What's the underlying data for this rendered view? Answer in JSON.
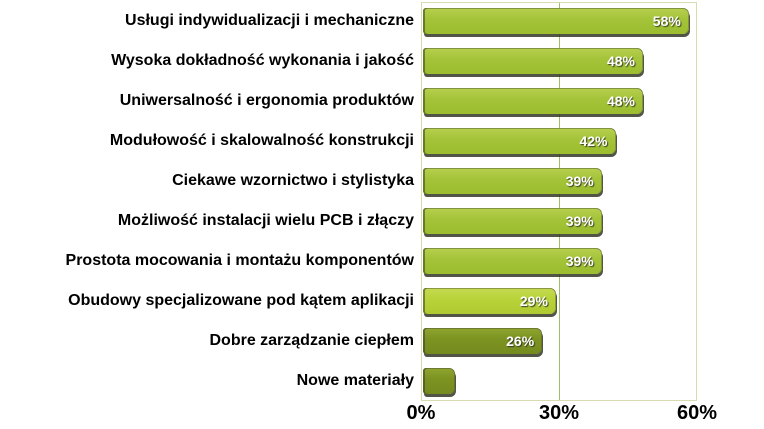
{
  "chart_data": {
    "type": "bar",
    "orientation": "horizontal",
    "title": "",
    "xlabel": "",
    "ylabel": "",
    "categories": [
      "Usługi indywidualizacji i mechaniczne",
      "Wysoka dokładność wykonania i jakość",
      "Uniwersalność i ergonomia produktów",
      "Modułowość i skalowalność konstrukcji",
      "Ciekawe wzornictwo i stylistyka",
      "Możliwość instalacji wielu PCB i złączy",
      "Prostota mocowania i montażu komponentów",
      "Obudowy specjalizowane pod kątem aplikacji",
      "Dobre zarządzanie ciepłem",
      "Nowe materiały"
    ],
    "values": [
      58,
      48,
      48,
      42,
      39,
      39,
      39,
      29,
      26,
      7
    ],
    "data_labels": [
      "58%",
      "48%",
      "48%",
      "42%",
      "39%",
      "39%",
      "39%",
      "29%",
      "26%",
      ""
    ],
    "bar_color_keys": [
      "standard",
      "standard",
      "standard",
      "standard",
      "standard",
      "standard",
      "standard",
      "light",
      "dark",
      "dark"
    ],
    "xlim": [
      0,
      60
    ],
    "x_ticks": [
      "0%",
      "30%",
      "60%"
    ],
    "grid": "single vertical gridline at 30%",
    "legend": "none"
  },
  "colors": {
    "bar_standard": "#a5c43a",
    "bar_light": "#b8d43a",
    "bar_dark": "#7d9422",
    "bar_shadow": "#343628",
    "value_text": "#ffffff",
    "category_text": "#000000",
    "axis_text": "#000000",
    "gridline": "#9cbf6a",
    "plot_border": "#d8dbb0",
    "background": "#ffffff"
  }
}
